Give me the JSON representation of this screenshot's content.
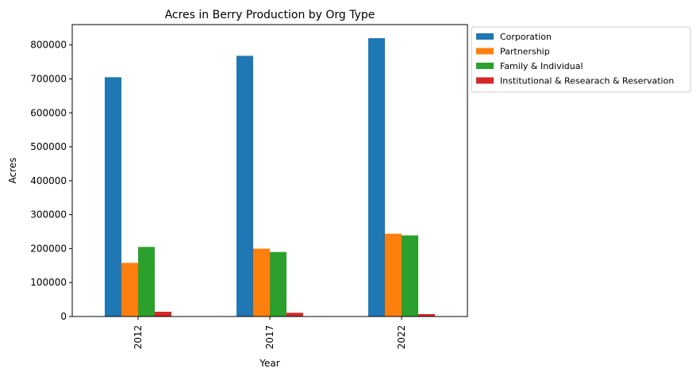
{
  "chart_data": {
    "type": "bar",
    "title": "Acres in Berry Production by Org Type",
    "xlabel": "Year",
    "ylabel": "Acres",
    "categories": [
      "2012",
      "2017",
      "2022"
    ],
    "series": [
      {
        "name": "Corporation",
        "color": "#1f77b4",
        "values": [
          705000,
          768000,
          820000
        ]
      },
      {
        "name": "Partnership",
        "color": "#ff7f0e",
        "values": [
          158000,
          200000,
          244000
        ]
      },
      {
        "name": "Family & Individual",
        "color": "#2ca02c",
        "values": [
          205000,
          190000,
          239000
        ]
      },
      {
        "name": "Institutional & Researach & Reservation",
        "color": "#d62728",
        "values": [
          14000,
          11000,
          7000
        ]
      }
    ],
    "ylim": [
      0,
      860000
    ],
    "yticks": [
      "0",
      "100000",
      "200000",
      "300000",
      "400000",
      "500000",
      "600000",
      "700000",
      "800000"
    ],
    "legend": "outside-top-right",
    "grid": false
  }
}
